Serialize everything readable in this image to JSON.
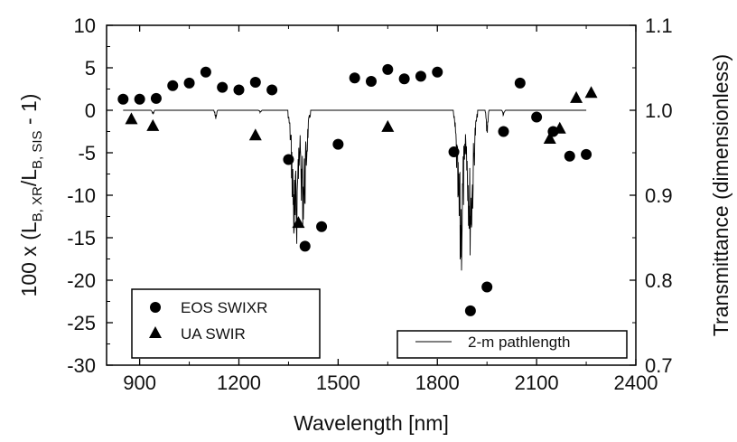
{
  "chart_data": {
    "type": "scatter",
    "xlabel": "Wavelength [nm]",
    "ylabel_left": {
      "prefix": "100 x (L",
      "sub1": "B, XR",
      "mid": "/L",
      "sub2": "B, SIS",
      "suffix": " - 1)"
    },
    "ylabel_right": "Transmittance (dimensionless)",
    "xlim": [
      800,
      2400
    ],
    "ylim_left": [
      -30,
      10
    ],
    "ylim_right": [
      0.7,
      1.1
    ],
    "x_ticks": [
      "900",
      "1200",
      "1500",
      "1800",
      "2100",
      "2400"
    ],
    "y_left_ticks": [
      "10",
      "5",
      "0",
      "-5",
      "-10",
      "-15",
      "-20",
      "-25",
      "-30"
    ],
    "y_right_ticks": [
      "1.1",
      "1.0",
      "0.9",
      "0.8",
      "0.7"
    ],
    "series": [
      {
        "name": "EOS SWIXR",
        "marker": "circle",
        "color": "#000000",
        "points": [
          [
            850,
            1.3
          ],
          [
            900,
            1.3
          ],
          [
            950,
            1.4
          ],
          [
            1000,
            2.9
          ],
          [
            1050,
            3.2
          ],
          [
            1100,
            4.5
          ],
          [
            1150,
            2.7
          ],
          [
            1200,
            2.4
          ],
          [
            1250,
            3.3
          ],
          [
            1300,
            2.4
          ],
          [
            1350,
            -5.8
          ],
          [
            1400,
            -16.0
          ],
          [
            1450,
            -13.7
          ],
          [
            1500,
            -4.0
          ],
          [
            1550,
            3.8
          ],
          [
            1600,
            3.4
          ],
          [
            1650,
            4.8
          ],
          [
            1700,
            3.7
          ],
          [
            1750,
            4.0
          ],
          [
            1800,
            4.5
          ],
          [
            1850,
            -4.9
          ],
          [
            1900,
            -23.6
          ],
          [
            1950,
            -20.8
          ],
          [
            2000,
            -2.5
          ],
          [
            2050,
            3.2
          ],
          [
            2100,
            -0.8
          ],
          [
            2150,
            -2.5
          ],
          [
            2200,
            -5.4
          ],
          [
            2250,
            -5.2
          ]
        ]
      },
      {
        "name": "UA SWIR",
        "marker": "triangle",
        "color": "#000000",
        "points": [
          [
            875,
            -1.0
          ],
          [
            940,
            -1.8
          ],
          [
            1250,
            -2.9
          ],
          [
            1380,
            -13.2
          ],
          [
            1650,
            -1.9
          ],
          [
            2140,
            -3.3
          ],
          [
            2170,
            -2.1
          ],
          [
            2220,
            1.5
          ],
          [
            2265,
            2.1
          ]
        ]
      },
      {
        "name": "2-m pathlength",
        "marker": "line",
        "color": "#000000",
        "axis": "right",
        "baseline": 1.0,
        "absorption_bands": [
          {
            "center": 940,
            "min": 0.994
          },
          {
            "center": 1130,
            "min": 0.987
          },
          {
            "center": 1265,
            "min": 0.997
          },
          {
            "center": 1370,
            "min": 0.808
          },
          {
            "center": 1395,
            "min": 0.86
          },
          {
            "center": 1870,
            "min": 0.79
          },
          {
            "center": 1900,
            "min": 0.825
          },
          {
            "center": 1950,
            "min": 0.965
          },
          {
            "center": 2000,
            "min": 0.993
          }
        ]
      }
    ],
    "legend": {
      "scatter_position": "bottom-left",
      "line_position": "bottom-right"
    }
  }
}
